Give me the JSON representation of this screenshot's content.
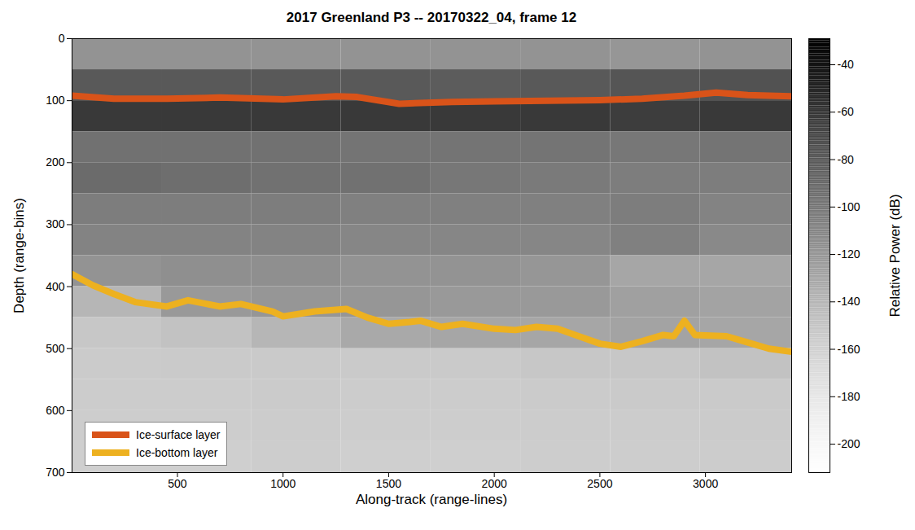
{
  "chart_data": {
    "type": "line",
    "title": "2017 Greenland P3 -- 20170322_04, frame 12",
    "x_label": "Along-track (range-lines)",
    "y_label": "Depth (range-bins)",
    "xlim": [
      1,
      3408
    ],
    "xticks": [
      500,
      1000,
      1500,
      2000,
      2500,
      3000
    ],
    "ylim": [
      0,
      700
    ],
    "yticks": [
      0,
      100,
      200,
      300,
      400,
      500,
      600,
      700
    ],
    "legend": "lower left",
    "series": [
      {
        "name": "Ice-surface layer",
        "color": "#d95319",
        "x": [
          1,
          200,
          450,
          700,
          1000,
          1250,
          1350,
          1550,
          1800,
          2000,
          2250,
          2500,
          2700,
          2900,
          3050,
          3200,
          3300,
          3408
        ],
        "values": [
          92,
          97,
          97,
          95,
          98,
          93,
          94,
          105,
          102,
          101,
          100,
          99,
          97,
          92,
          87,
          91,
          92,
          93
        ]
      },
      {
        "name": "Ice-bottom layer",
        "color": "#edb120",
        "x": [
          1,
          100,
          200,
          300,
          450,
          550,
          700,
          800,
          950,
          1000,
          1150,
          1300,
          1400,
          1500,
          1600,
          1650,
          1750,
          1850,
          2000,
          2100,
          2200,
          2300,
          2400,
          2500,
          2600,
          2700,
          2800,
          2850,
          2900,
          2950,
          3100,
          3200,
          3300,
          3408
        ],
        "values": [
          380,
          398,
          412,
          425,
          432,
          422,
          432,
          428,
          440,
          448,
          440,
          436,
          450,
          460,
          457,
          455,
          465,
          460,
          468,
          470,
          465,
          468,
          480,
          492,
          497,
          488,
          478,
          480,
          455,
          478,
          480,
          490,
          500,
          505
        ]
      }
    ],
    "heatmap": {
      "x_edges": [
        1,
        425,
        850,
        1275,
        1700,
        2125,
        2550,
        2975,
        3408
      ],
      "y_edges": [
        0,
        50,
        100,
        150,
        200,
        250,
        300,
        350,
        400,
        450,
        500,
        550,
        600,
        650,
        700
      ],
      "values": [
        [
          -118,
          -118,
          -118,
          -118,
          -118,
          -118,
          -120,
          -118
        ],
        [
          -80,
          -80,
          -80,
          -80,
          -82,
          -80,
          -78,
          -76
        ],
        [
          -62,
          -62,
          -62,
          -62,
          -62,
          -62,
          -64,
          -62
        ],
        [
          -96,
          -96,
          -96,
          -98,
          -98,
          -98,
          -100,
          -98
        ],
        [
          -92,
          -94,
          -96,
          -96,
          -100,
          -102,
          -104,
          -104
        ],
        [
          -104,
          -104,
          -104,
          -106,
          -106,
          -106,
          -104,
          -108
        ],
        [
          -108,
          -108,
          -108,
          -110,
          -110,
          -110,
          -106,
          -112
        ],
        [
          -118,
          -116,
          -116,
          -118,
          -118,
          -120,
          -130,
          -130
        ],
        [
          -140,
          -122,
          -120,
          -120,
          -122,
          -122,
          -126,
          -128
        ],
        [
          -152,
          -148,
          -140,
          -132,
          -130,
          -130,
          -128,
          -130
        ],
        [
          -155,
          -154,
          -154,
          -154,
          -154,
          -152,
          -152,
          -148
        ],
        [
          -156,
          -156,
          -155,
          -156,
          -156,
          -155,
          -154,
          -154
        ],
        [
          -157,
          -157,
          -156,
          -157,
          -157,
          -156,
          -156,
          -155
        ],
        [
          -158,
          -158,
          -157,
          -158,
          -158,
          -157,
          -157,
          -156
        ]
      ]
    },
    "colorbar": {
      "label": "Relative Power (dB)",
      "lim": [
        -212,
        -29
      ],
      "ticks": [
        -200,
        -180,
        -160,
        -140,
        -120,
        -100,
        -80,
        -60,
        -40
      ]
    }
  }
}
